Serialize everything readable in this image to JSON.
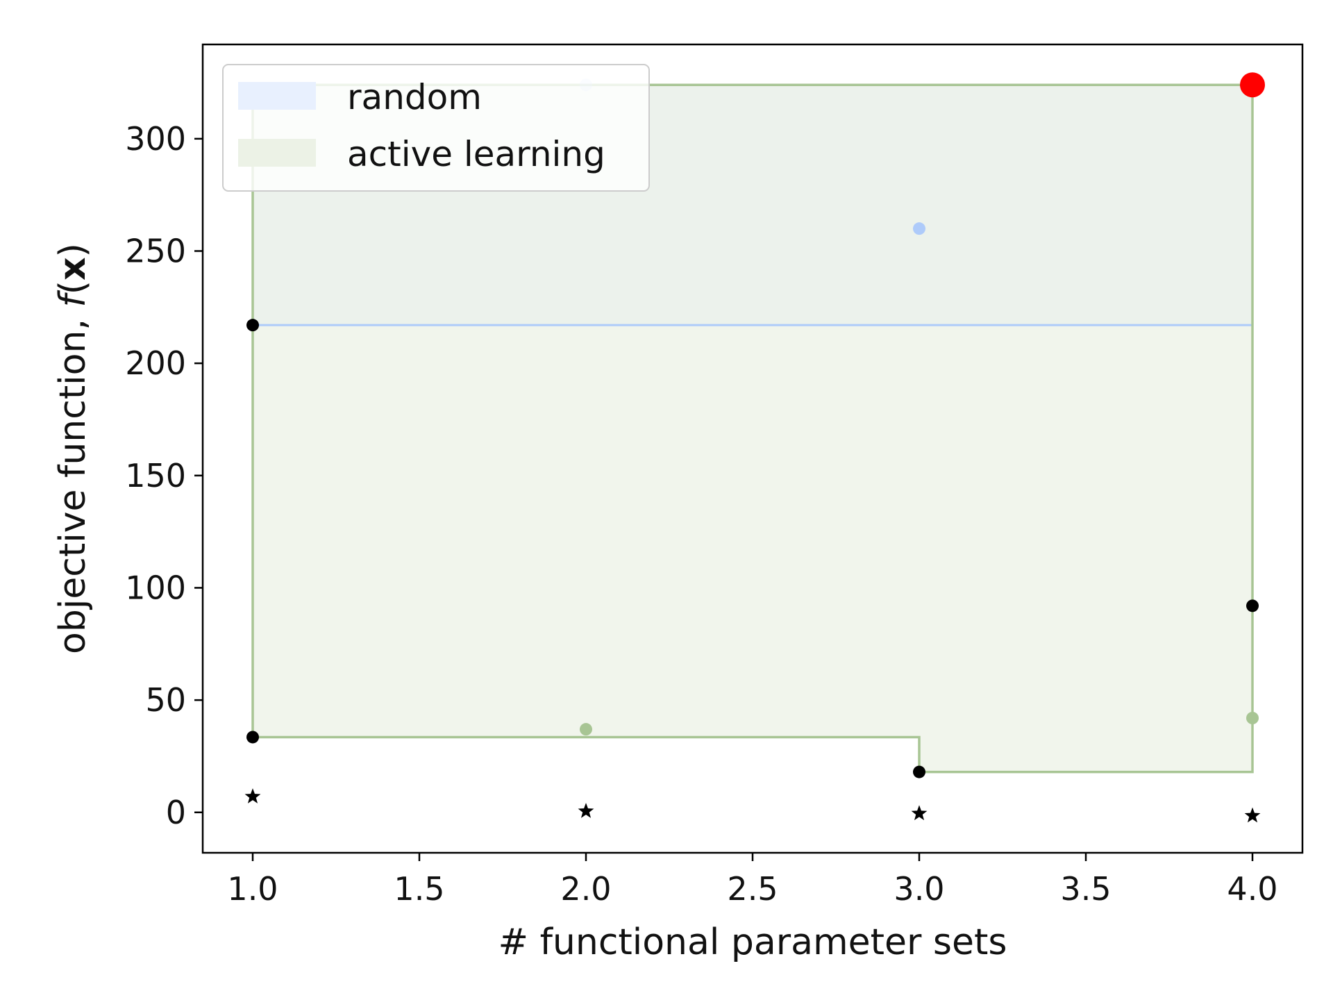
{
  "chart_data": {
    "type": "scatter",
    "xlabel": "# functional parameter sets",
    "ylabel_prefix": "objective function, ",
    "ylabel_func": "f",
    "ylabel_open": "(",
    "ylabel_var": "x",
    "ylabel_close": ")",
    "xlim": [
      0.85,
      4.15
    ],
    "ylim": [
      -18,
      342
    ],
    "xticks": [
      1.0,
      1.5,
      2.0,
      2.5,
      3.0,
      3.5,
      4.0
    ],
    "xtick_labels": [
      "1.0",
      "1.5",
      "2.0",
      "2.5",
      "3.0",
      "3.5",
      "4.0"
    ],
    "yticks": [
      0,
      50,
      100,
      150,
      200,
      250,
      300
    ],
    "ytick_labels": [
      "0",
      "50",
      "100",
      "150",
      "200",
      "250",
      "300"
    ],
    "grid": false,
    "legend_position": "top-left",
    "series": [
      {
        "name": "random",
        "color": "#aecbfa",
        "fill_color": "#e8f0fe",
        "band_lower": [
          {
            "x": 1,
            "y": 217
          },
          {
            "x": 4,
            "y": 217
          }
        ],
        "band_upper": [
          {
            "x": 1,
            "y": 324
          },
          {
            "x": 4,
            "y": 324
          }
        ],
        "points": [
          {
            "x": 2,
            "y": 324
          },
          {
            "x": 3,
            "y": 260
          }
        ]
      },
      {
        "name": "active learning",
        "color": "#a8c594",
        "fill_color": "#ecf2e6",
        "band_lower": [
          {
            "x": 1,
            "y": 33.5
          },
          {
            "x": 3,
            "y": 33.5
          },
          {
            "x": 3,
            "y": 18
          },
          {
            "x": 4,
            "y": 18
          }
        ],
        "band_upper": [
          {
            "x": 1,
            "y": 324
          },
          {
            "x": 4,
            "y": 324
          }
        ],
        "points": [
          {
            "x": 2,
            "y": 37
          },
          {
            "x": 4,
            "y": 42
          }
        ]
      }
    ],
    "black_points": [
      {
        "x": 1,
        "y": 217
      },
      {
        "x": 1,
        "y": 33.5
      },
      {
        "x": 3,
        "y": 18
      },
      {
        "x": 4,
        "y": 92
      }
    ],
    "star_points": [
      {
        "x": 1,
        "y": 7
      },
      {
        "x": 2,
        "y": 0.5
      },
      {
        "x": 3,
        "y": -0.5
      },
      {
        "x": 4,
        "y": -1.5
      }
    ],
    "best_point": {
      "x": 4,
      "y": 324,
      "color": "#ff0000"
    }
  }
}
